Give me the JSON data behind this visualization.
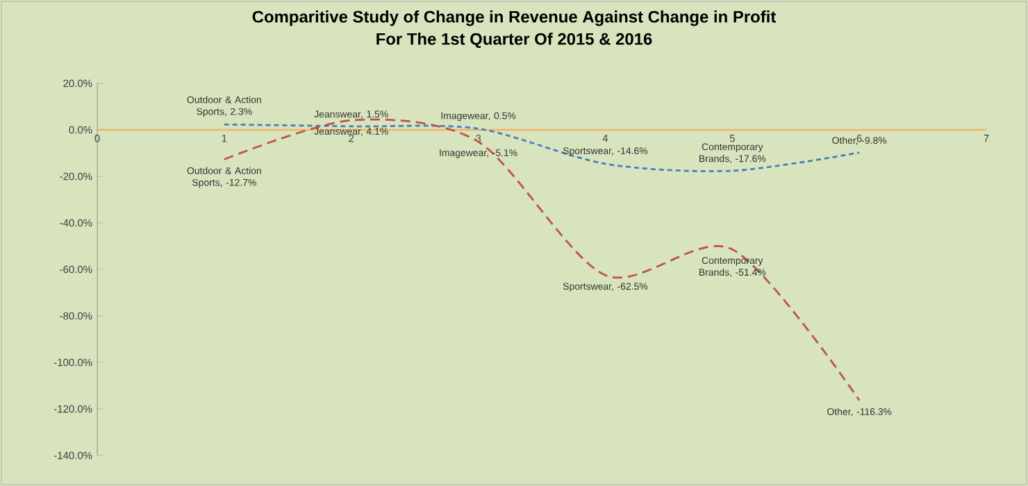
{
  "chart_data": {
    "type": "line",
    "title": "Comparitive Study of Change in Revenue Against Change in Profit",
    "subtitle": "For The 1st Quarter Of 2015 & 2016",
    "x": [
      1,
      2,
      3,
      4,
      5,
      6
    ],
    "xlim": [
      0,
      7
    ],
    "xticks": [
      0,
      1,
      2,
      3,
      4,
      5,
      6,
      7
    ],
    "ylim": [
      -140,
      20
    ],
    "yticks": [
      {
        "value": -140,
        "label": "-140.0%"
      },
      {
        "value": -120,
        "label": "-120.0%"
      },
      {
        "value": -100,
        "label": "-100.0%"
      },
      {
        "value": -80,
        "label": "-80.0%"
      },
      {
        "value": -60,
        "label": "-60.0%"
      },
      {
        "value": -40,
        "label": "-40.0%"
      },
      {
        "value": -20,
        "label": "-20.0%"
      },
      {
        "value": 0,
        "label": "0.0%"
      },
      {
        "value": 20,
        "label": "20.0%"
      }
    ],
    "series": [
      {
        "color": "#4a7ebb",
        "line_style": "dotted",
        "values": [
          2.3,
          1.5,
          0.5,
          -14.6,
          -17.6,
          -9.8
        ],
        "value_labels": [
          "Outdoor & Action Sports, 2.3%",
          "Jeanswear, 1.5%",
          "Imagewear, 0.5%",
          "Sportswear, -14.6%",
          "Contemporary Brands, -17.6%",
          "Other, -9.8%"
        ]
      },
      {
        "color": "#c0504d",
        "line_style": "dashed",
        "values": [
          -12.7,
          4.1,
          -5.1,
          -62.5,
          -51.4,
          -116.3
        ],
        "value_labels": [
          "Outdoor & Action Sports, -12.7%",
          "Jeanswear, 4.1%",
          "Imagewear, -5.1%",
          "Sportswear, -62.5%",
          "Contemporary Brands, -51.4%",
          "Other, -116.3%"
        ]
      }
    ],
    "marker": "none",
    "grid": false
  }
}
